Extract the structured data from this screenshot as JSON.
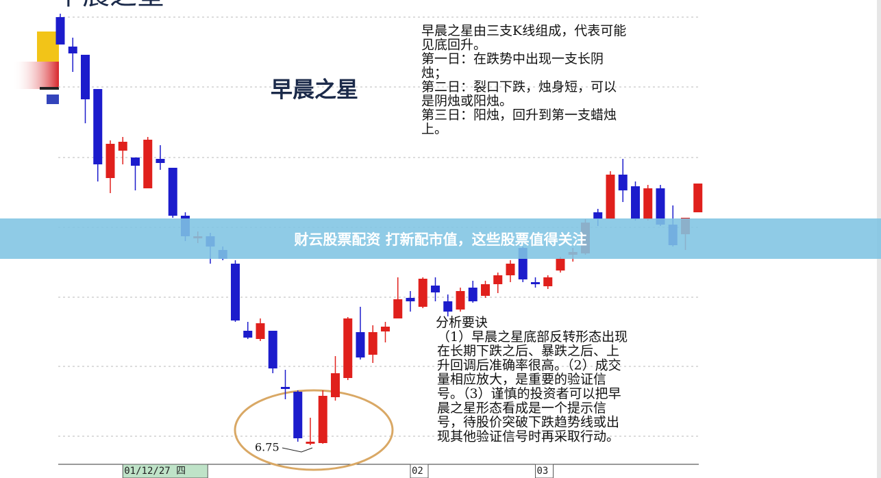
{
  "chart_data": {
    "type": "candlestick",
    "title": "早晨之星",
    "heading": "早晨之星",
    "description": [
      "早晨之星由三支K线组成，代表可能",
      "见底回升。",
      "第一日：在跌势中出现一支长阴",
      "烛；",
      "第二日：裂口下跌，烛身短，可以",
      "是阴烛或阳烛。",
      "第三日：阳烛，回升到第一支蜡烛",
      "上。"
    ],
    "analysis": [
      "分析要诀",
      "（1）早晨之星底部反转形态出现",
      "在长期下跌之后、暴跌之后、上",
      "升回调后准确率很高。（2）成交",
      "量相应放大，是重要的验证信",
      "号。（3）谨慎的投资者可以把早",
      "晨之星形态看成是一个提示信",
      "号，待股价突破下跌趋势线或出",
      "现其他验证信号时再采取行动。"
    ],
    "low_annotation": "6.75",
    "up_color": "#e0201c",
    "down_color": "#1c1ccc",
    "grid": true,
    "ylim": [
      6.4,
      13.25
    ],
    "categories": [
      null,
      null,
      null,
      null,
      null,
      "01/12/27 四",
      null,
      null,
      null,
      null,
      null,
      null,
      null,
      null,
      null,
      null,
      null,
      null,
      null,
      null,
      null,
      null,
      null,
      null,
      null,
      null,
      null,
      null,
      "02",
      null,
      null,
      null,
      null,
      null,
      null,
      null,
      null,
      null,
      "03",
      null,
      null,
      null,
      null,
      null,
      null,
      null,
      null,
      null,
      null,
      null,
      null,
      null
    ],
    "open": [
      13.0,
      12.57,
      12.45,
      11.95,
      10.65,
      11.05,
      10.95,
      10.5,
      10.93,
      10.8,
      10.1,
      9.77,
      9.8,
      9.6,
      9.4,
      8.42,
      8.3,
      8.42,
      7.6,
      7.53,
      6.77,
      6.78,
      7.45,
      7.73,
      8.4,
      8.07,
      8.41,
      8.6,
      8.9,
      8.77,
      9.08,
      8.85,
      8.73,
      9.05,
      8.93,
      9.1,
      9.23,
      9.63,
      9.13,
      9.07,
      9.3,
      9.53,
      9.55,
      10.15,
      10.05,
      10.7,
      10.53,
      10.05,
      10.5,
      9.97,
      9.83,
      10.15
    ],
    "high": [
      13.05,
      12.7,
      12.45,
      11.95,
      11.2,
      11.25,
      10.95,
      11.25,
      11.13,
      10.8,
      10.15,
      9.87,
      9.85,
      9.65,
      9.45,
      8.55,
      8.6,
      8.42,
      7.85,
      7.55,
      7.15,
      7.55,
      8.05,
      8.62,
      8.77,
      8.5,
      8.55,
      9.2,
      9.0,
      9.2,
      9.2,
      8.95,
      9.05,
      9.15,
      9.15,
      9.27,
      9.45,
      9.65,
      9.2,
      9.23,
      9.5,
      9.63,
      10.05,
      10.2,
      10.75,
      10.93,
      10.6,
      10.55,
      10.55,
      10.25,
      10.07,
      10.57
    ],
    "low": [
      12.6,
      12.2,
      11.45,
      10.6,
      10.43,
      10.85,
      10.47,
      10.5,
      10.77,
      10.07,
      9.73,
      9.7,
      9.4,
      9.45,
      8.55,
      8.3,
      8.27,
      7.8,
      7.42,
      6.8,
      6.75,
      6.77,
      7.4,
      7.7,
      8.0,
      7.95,
      8.25,
      8.6,
      8.7,
      8.75,
      8.85,
      8.63,
      8.7,
      8.83,
      8.9,
      8.97,
      9.13,
      9.13,
      9.05,
      9.03,
      9.27,
      9.43,
      9.53,
      9.95,
      10.05,
      10.3,
      10.03,
      10.03,
      9.95,
      9.65,
      9.6,
      10.15
    ],
    "close": [
      12.6,
      12.47,
      11.8,
      10.85,
      11.15,
      11.18,
      10.83,
      11.21,
      10.87,
      10.1,
      9.8,
      9.8,
      9.65,
      9.47,
      8.57,
      8.32,
      8.53,
      7.87,
      7.57,
      6.85,
      6.8,
      7.47,
      7.8,
      8.6,
      8.03,
      8.4,
      8.48,
      8.88,
      8.85,
      9.18,
      8.98,
      8.7,
      9.0,
      8.85,
      9.1,
      9.23,
      9.4,
      9.17,
      9.1,
      9.2,
      9.47,
      9.57,
      10.0,
      10.05,
      10.7,
      10.47,
      10.05,
      10.5,
      9.97,
      9.67,
      10.07,
      10.57
    ]
  },
  "banner": {
    "text": "财云股票配资 打新配市值，这些股票值得关注"
  }
}
